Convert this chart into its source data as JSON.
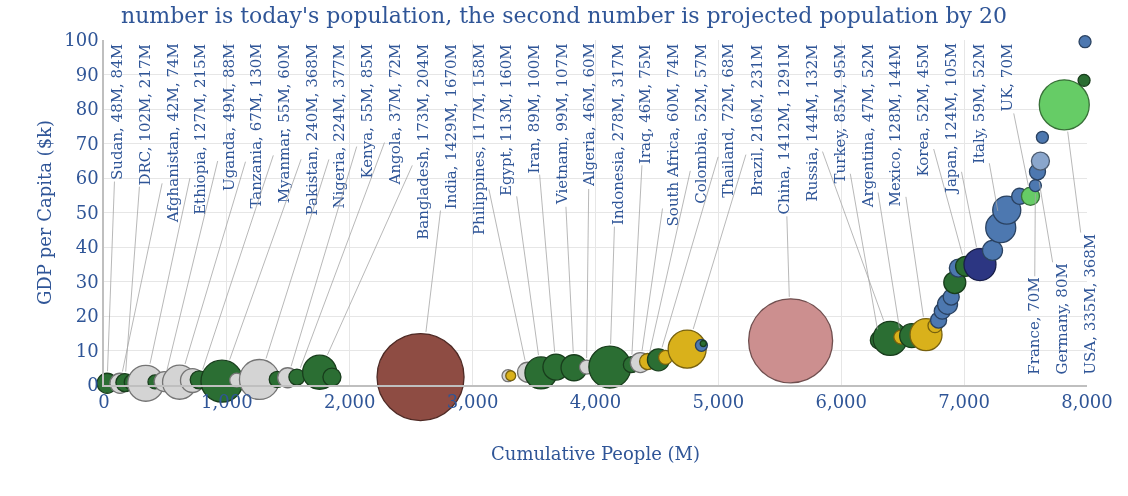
{
  "chart_data": {
    "type": "bubble",
    "title": "number is today's population, the second number is projected population by 20",
    "xlabel": "Cumulative People (M)",
    "ylabel": "GDP per Capita ($k)",
    "x": [
      25,
      130,
      170,
      230,
      340,
      415,
      490,
      615,
      720,
      775,
      960,
      1080,
      1265,
      1410,
      1495,
      1570,
      1755,
      1855,
      2576,
      3288,
      3310,
      3447,
      3556,
      3678,
      3825,
      3927,
      4117,
      4292,
      4365,
      4424,
      4512,
      4570,
      4746,
      4862,
      4877,
      5588,
      6310,
      6398,
      6485,
      6573,
      6690,
      6763,
      6792,
      6822,
      6865,
      6895,
      6924,
      6953,
      7012,
      7129,
      7231,
      7298,
      7347,
      7452,
      7540,
      7580,
      7597,
      7621,
      7637,
      7815,
      7976,
      7984
    ],
    "values": [
      0.5,
      0.5,
      0.7,
      0.8,
      0.5,
      0.9,
      1,
      0.8,
      1.3,
      1.5,
      1.1,
      1.4,
      1.6,
      1.6,
      2.1,
      2.3,
      3.7,
      2.3,
      2.3,
      2.7,
      2.7,
      3.7,
      3.5,
      5.2,
      5,
      5.2,
      5.2,
      5.9,
      6.5,
      6.8,
      7.3,
      8,
      10.4,
      11.5,
      12,
      12.8,
      13,
      13.5,
      13.9,
      14.3,
      14.6,
      17.2,
      18.8,
      21.4,
      23.4,
      25.5,
      29.7,
      33.9,
      34.4,
      34.9,
      39,
      45.6,
      50.7,
      54.7,
      54.7,
      57.8,
      61.8,
      64.9,
      71.8,
      81.2,
      88.3,
      99.5
    ],
    "sizes": [
      0.053,
      0.053,
      0.043,
      0.034,
      0.171,
      0.026,
      0.053,
      0.153,
      0.076,
      0.043,
      0.233,
      0.026,
      0.211,
      0.034,
      0.053,
      0.034,
      0.153,
      0.043,
      1,
      0.019,
      0.013,
      0.053,
      0.135,
      0.089,
      0.089,
      0.026,
      0.233,
      0.034,
      0.053,
      0.034,
      0.064,
      0.026,
      0.191,
      0.019,
      0.005,
      0.932,
      0.043,
      0.153,
      0.026,
      0.076,
      0.135,
      0.026,
      0.034,
      0.034,
      0.053,
      0.034,
      0.064,
      0.043,
      0.053,
      0.135,
      0.053,
      0.119,
      0.104,
      0.034,
      0.043,
      0.019,
      0.034,
      0.043,
      0.019,
      0.33,
      0.019,
      0.019
    ],
    "colors": [
      "#2b6e33",
      "#d4d4d4",
      "#2b6e33",
      "#2b6e33",
      "#d4d4d4",
      "#2b6e33",
      "#d4d4d4",
      "#d4d4d4",
      "#d4d4d4",
      "#2b6e33",
      "#2b6e33",
      "#d4d4d4",
      "#d4d4d4",
      "#2b6e33",
      "#d4d4d4",
      "#2b6e33",
      "#2b6e33",
      "#2b6e33",
      "#8e4c43",
      "#d4d4d4",
      "#d9b11b",
      "#d4d4d4",
      "#2b6e33",
      "#2b6e33",
      "#2b6e33",
      "#d4d4d4",
      "#2b6e33",
      "#2b6e33",
      "#d4d4d4",
      "#d9b11b",
      "#2b6e33",
      "#d9b11b",
      "#d9b11b",
      "#4d78b0",
      "#2b6e33",
      "#cc8f8f",
      "#2b6e33",
      "#2b6e33",
      "#d9b11b",
      "#2b6e33",
      "#d9b11b",
      "#d9b11b",
      "#4d78b0",
      "#4d78b0",
      "#4d78b0",
      "#4d78b0",
      "#2b6e33",
      "#4d78b0",
      "#2b6e33",
      "#2c3682",
      "#4d78b0",
      "#4d78b0",
      "#4d78b0",
      "#4d78b0",
      "#66cc66",
      "#4d78b0",
      "#4d78b0",
      "#8aa6cc",
      "#4d78b0",
      "#66cc66",
      "#2b6e33",
      "#4d78b0"
    ],
    "xlim": [
      0,
      8000
    ],
    "xticks": [
      0,
      {
        "value": 1000,
        "label": "1,000"
      },
      {
        "value": 2000,
        "label": "2,000"
      },
      {
        "value": 3000,
        "label": "3,000"
      },
      {
        "value": 4000,
        "label": "4,000"
      },
      {
        "value": 5000,
        "label": "5,000"
      },
      {
        "value": 6000,
        "label": "6,000"
      },
      {
        "value": 7000,
        "label": "7,000"
      },
      {
        "value": 8000,
        "label": "8,000"
      }
    ],
    "ylim": [
      0,
      100
    ],
    "yticks": [
      0,
      10,
      20,
      30,
      40,
      50,
      60,
      70,
      80,
      90,
      100
    ],
    "grid": true,
    "marker": "circle",
    "annotations": [
      {
        "text": "Sudan, 48M, 84M",
        "x": 25,
        "y": 0.5
      },
      {
        "text": "DRC, 102M, 217M",
        "x": 170,
        "y": 0.7
      },
      {
        "text": "Afghanistan, 42M, 74M",
        "x": 130,
        "y": 0.5
      },
      {
        "text": "Ethiopia, 127M, 215M",
        "x": 340,
        "y": 0.5
      },
      {
        "text": "Uganda, 49M, 88M",
        "x": 490,
        "y": 1
      },
      {
        "text": "Tanzania, 67M, 130M",
        "x": 615,
        "y": 0.8
      },
      {
        "text": "Myanmar, 55M, 60M",
        "x": 775,
        "y": 1.5
      },
      {
        "text": "Pakistan, 240M, 368M",
        "x": 960,
        "y": 1.1
      },
      {
        "text": "Nigeria, 224M, 377M",
        "x": 1265,
        "y": 1.6
      },
      {
        "text": "Kenya, 55M, 85M",
        "x": 1495,
        "y": 2.1
      },
      {
        "text": "Angola, 37M, 72M",
        "x": 1570,
        "y": 2.3
      },
      {
        "text": "Bangladesh, 173M, 204M",
        "x": 1755,
        "y": 3.7
      },
      {
        "text": "India, 1429M, 1670M",
        "x": 2576,
        "y": 2.3
      },
      {
        "text": "Philippines, 117M, 158M",
        "x": 3447,
        "y": 3.7
      },
      {
        "text": "Egypt, 113M, 160M",
        "x": 3556,
        "y": 3.5
      },
      {
        "text": "Iran, 89M, 100M",
        "x": 3678,
        "y": 5.2
      },
      {
        "text": "Vietnam, 99M, 107M",
        "x": 3825,
        "y": 5
      },
      {
        "text": "Algeria, 46M, 60M",
        "x": 3927,
        "y": 5.2
      },
      {
        "text": "Indonesia, 278M, 317M",
        "x": 4117,
        "y": 5.2
      },
      {
        "text": "Iraq, 46M, 75M",
        "x": 4292,
        "y": 5.9
      },
      {
        "text": "South Africa, 60M, 74M",
        "x": 4365,
        "y": 6.5
      },
      {
        "text": "Colombia, 52M, 57M",
        "x": 4424,
        "y": 6.8
      },
      {
        "text": "Thailand, 72M, 68M",
        "x": 4512,
        "y": 7.3
      },
      {
        "text": "Brazil, 216M, 231M",
        "x": 4746,
        "y": 10.4
      },
      {
        "text": "China, 1412M, 1291M",
        "x": 5588,
        "y": 12.8
      },
      {
        "text": "Russia, 144M, 132M",
        "x": 6398,
        "y": 13.5
      },
      {
        "text": "Turkey, 85M, 95M",
        "x": 6310,
        "y": 13
      },
      {
        "text": "Argentina, 47M, 52M",
        "x": 6485,
        "y": 13.9
      },
      {
        "text": "Mexico, 128M, 144M",
        "x": 6690,
        "y": 14.6
      },
      {
        "text": "Korea, 52M, 45M",
        "x": 7012,
        "y": 34.4
      },
      {
        "text": "Japan, 124M, 105M",
        "x": 7129,
        "y": 34.9
      },
      {
        "text": "Italy, 59M, 52M",
        "x": 7298,
        "y": 45.6
      },
      {
        "text": "UK, 70M",
        "x": 7540,
        "y": 54.7
      },
      {
        "text": "France, 70M",
        "x": 7580,
        "y": 57.8
      },
      {
        "text": "Germany, 80M",
        "x": 7597,
        "y": 61.8
      },
      {
        "text": "USA, 335M, 368M",
        "x": 7815,
        "y": 81.2
      }
    ]
  }
}
